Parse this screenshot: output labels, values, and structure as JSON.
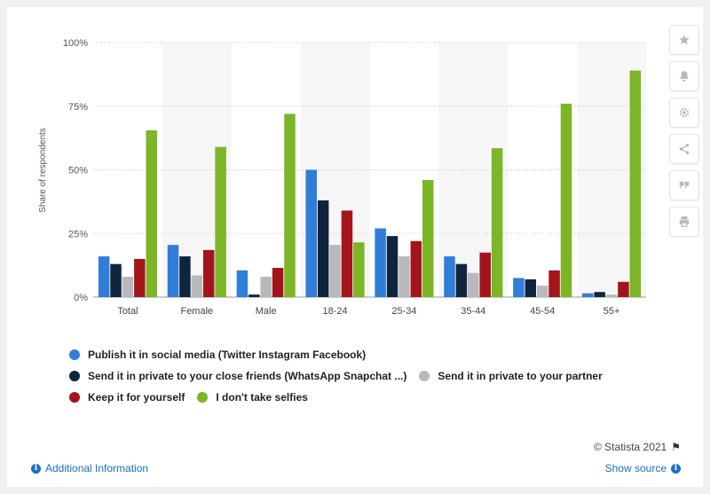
{
  "chart_data": {
    "type": "bar",
    "ylabel": "Share of respondents",
    "ylim": [
      0,
      100
    ],
    "yticks": [
      "0%",
      "25%",
      "50%",
      "75%",
      "100%"
    ],
    "categories": [
      "Total",
      "Female",
      "Male",
      "18-24",
      "25-34",
      "35-44",
      "45-54",
      "55+"
    ],
    "series": [
      {
        "name": "Publish it in social media (Twitter Instagram Facebook)",
        "color": "#2f7ed8",
        "values": [
          16,
          20.5,
          10.5,
          50,
          27,
          16,
          7.5,
          1.5
        ]
      },
      {
        "name": "Send it in private to your close friends (WhatsApp Snapchat ...)",
        "color": "#10243d",
        "values": [
          13,
          16,
          1,
          38,
          24,
          13,
          7,
          2
        ]
      },
      {
        "name": "Send it in private to your partner",
        "color": "#b7b9bd",
        "values": [
          8,
          8.5,
          8,
          20.5,
          16,
          9.5,
          4.5,
          1
        ]
      },
      {
        "name": "Keep it for yourself",
        "color": "#a3151b",
        "values": [
          15,
          18.5,
          11.5,
          34,
          22,
          17.5,
          10.5,
          6
        ]
      },
      {
        "name": "I don't take selfies",
        "color": "#7cb526",
        "values": [
          65.5,
          59,
          72,
          21.5,
          46,
          58.5,
          76,
          89
        ]
      }
    ],
    "grid": true,
    "legend_position": "bottom"
  },
  "legend_rows": [
    [
      0
    ],
    [
      1,
      2
    ],
    [
      3,
      4
    ]
  ],
  "footer": {
    "copyright": "© Statista 2021",
    "additional_info": "Additional Information",
    "show_source": "Show source"
  },
  "sidebar_icons": [
    "star-icon",
    "bell-icon",
    "gear-icon",
    "share-icon",
    "quote-icon",
    "print-icon"
  ]
}
